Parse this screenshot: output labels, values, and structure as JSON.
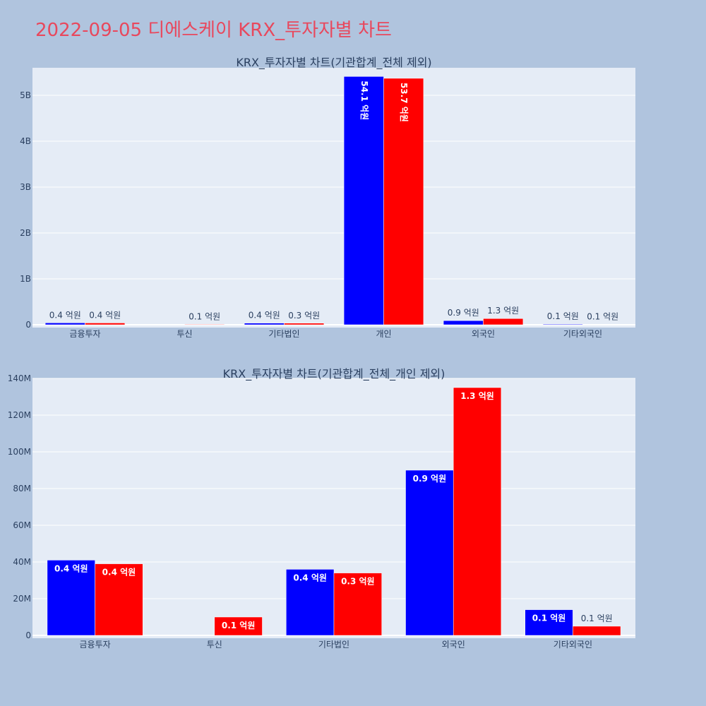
{
  "page_title": "2022-09-05 디에스케이 KRX_투자자별 차트",
  "colors": {
    "buy": "#0000ff",
    "sell": "#ff0000",
    "plot_bg": "#e5ecf6",
    "page_bg": "#b0c4de",
    "title": "#e8485d"
  },
  "chart_data": [
    {
      "type": "bar",
      "title": "KRX_투자자별 차트(기관합계_전체 제외)",
      "categories": [
        "금융투자",
        "투신",
        "기타법인",
        "개인",
        "외국인",
        "기타외국인"
      ],
      "ylim": [
        0,
        5600000000
      ],
      "yticks": [
        0,
        1000000000,
        2000000000,
        3000000000,
        4000000000,
        5000000000
      ],
      "ytick_labels": [
        "0",
        "1B",
        "2B",
        "3B",
        "4B",
        "5B"
      ],
      "series": [
        {
          "name": "buy",
          "color": "#0000ff",
          "values": [
            41000000,
            0,
            36000000,
            5410000000,
            90000000,
            14000000
          ],
          "labels": [
            "0.4 억원",
            "",
            "0.4 억원",
            "54.1 억원",
            "0.9 억원",
            "0.1 억원"
          ]
        },
        {
          "name": "sell",
          "color": "#ff0000",
          "values": [
            39000000,
            10000000,
            34000000,
            5370000000,
            135000000,
            5000000
          ],
          "labels": [
            "0.4 억원",
            "0.1 억원",
            "0.3 억원",
            "53.7 억원",
            "1.3 억원",
            "0.1 억원"
          ]
        }
      ]
    },
    {
      "type": "bar",
      "title": "KRX_투자자별 차트(기관합계_전체_개인 제외)",
      "categories": [
        "금융투자",
        "투신",
        "기타법인",
        "외국인",
        "기타외국인"
      ],
      "ylim": [
        0,
        140000000
      ],
      "yticks": [
        0,
        20000000,
        40000000,
        60000000,
        80000000,
        100000000,
        120000000,
        140000000
      ],
      "ytick_labels": [
        "0",
        "20M",
        "40M",
        "60M",
        "80M",
        "100M",
        "120M",
        "140M"
      ],
      "series": [
        {
          "name": "buy",
          "color": "#0000ff",
          "values": [
            41000000,
            0,
            36000000,
            90000000,
            14000000
          ],
          "labels": [
            "0.4 억원",
            "",
            "0.4 억원",
            "0.9 억원",
            "0.1 억원"
          ]
        },
        {
          "name": "sell",
          "color": "#ff0000",
          "values": [
            39000000,
            10000000,
            34000000,
            135000000,
            5000000
          ],
          "labels": [
            "0.4 억원",
            "0.1 억원",
            "0.3 억원",
            "1.3 억원",
            "0.1 억원"
          ]
        }
      ]
    }
  ]
}
